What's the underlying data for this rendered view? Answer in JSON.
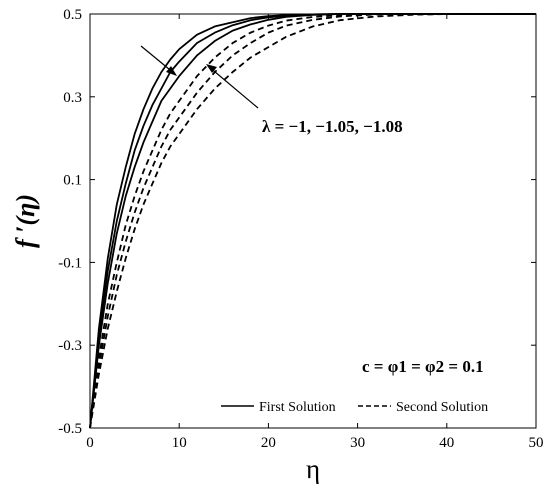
{
  "chart_data": {
    "type": "line",
    "xlabel": "η",
    "ylabel": "f ′(η)",
    "xlim": [
      0,
      50
    ],
    "ylim": [
      -0.5,
      0.5
    ],
    "xticks": [
      0,
      10,
      20,
      30,
      40,
      50
    ],
    "yticks": [
      -0.5,
      -0.3,
      -0.1,
      0.1,
      0.3,
      0.5
    ],
    "ytick_labels": [
      "-0.5",
      "-0.3",
      "-0.1",
      "0.1",
      "0.3",
      "0.5"
    ],
    "grid": false,
    "legend": {
      "placement": "bottom-right",
      "entries": [
        {
          "label": "First Solution",
          "style": "solid"
        },
        {
          "label": "Second Solution",
          "style": "dashed"
        }
      ]
    },
    "annotations": {
      "lambda": "λ = −1, −1.05, −1.08",
      "params": "c = φ1 = φ2 = 0.1"
    },
    "x": [
      0,
      1,
      2,
      3,
      4,
      5,
      6,
      7,
      8,
      9,
      10,
      12,
      14,
      16,
      18,
      20,
      22,
      25,
      28,
      32,
      36,
      40,
      45,
      50
    ],
    "series": [
      {
        "style": "solid",
        "values": [
          -0.5,
          -0.26,
          -0.09,
          0.04,
          0.13,
          0.21,
          0.27,
          0.32,
          0.36,
          0.39,
          0.415,
          0.45,
          0.47,
          0.48,
          0.49,
          0.495,
          0.497,
          0.499,
          0.5,
          0.5,
          0.5,
          0.5,
          0.5,
          0.5
        ]
      },
      {
        "style": "solid",
        "values": [
          -0.5,
          -0.28,
          -0.12,
          0.0,
          0.09,
          0.17,
          0.23,
          0.28,
          0.32,
          0.36,
          0.385,
          0.43,
          0.455,
          0.473,
          0.485,
          0.492,
          0.496,
          0.499,
          0.5,
          0.5,
          0.5,
          0.5,
          0.5,
          0.5
        ]
      },
      {
        "style": "solid",
        "values": [
          -0.5,
          -0.3,
          -0.15,
          -0.03,
          0.06,
          0.13,
          0.19,
          0.24,
          0.29,
          0.32,
          0.35,
          0.4,
          0.435,
          0.46,
          0.475,
          0.486,
          0.493,
          0.498,
          0.5,
          0.5,
          0.5,
          0.5,
          0.5,
          0.5
        ]
      },
      {
        "style": "dashed",
        "values": [
          -0.5,
          -0.33,
          -0.2,
          -0.1,
          -0.01,
          0.06,
          0.12,
          0.17,
          0.22,
          0.26,
          0.29,
          0.35,
          0.395,
          0.43,
          0.455,
          0.472,
          0.484,
          0.493,
          0.497,
          0.5,
          0.5,
          0.5,
          0.5,
          0.5
        ]
      },
      {
        "style": "dashed",
        "values": [
          -0.5,
          -0.35,
          -0.23,
          -0.13,
          -0.05,
          0.02,
          0.08,
          0.13,
          0.18,
          0.22,
          0.25,
          0.31,
          0.36,
          0.4,
          0.43,
          0.455,
          0.472,
          0.486,
          0.494,
          0.499,
          0.5,
          0.5,
          0.5,
          0.5
        ]
      },
      {
        "style": "dashed",
        "values": [
          -0.5,
          -0.37,
          -0.26,
          -0.17,
          -0.09,
          -0.02,
          0.04,
          0.09,
          0.14,
          0.18,
          0.21,
          0.27,
          0.32,
          0.36,
          0.395,
          0.42,
          0.445,
          0.47,
          0.485,
          0.494,
          0.498,
          0.5,
          0.5,
          0.5
        ]
      }
    ]
  }
}
